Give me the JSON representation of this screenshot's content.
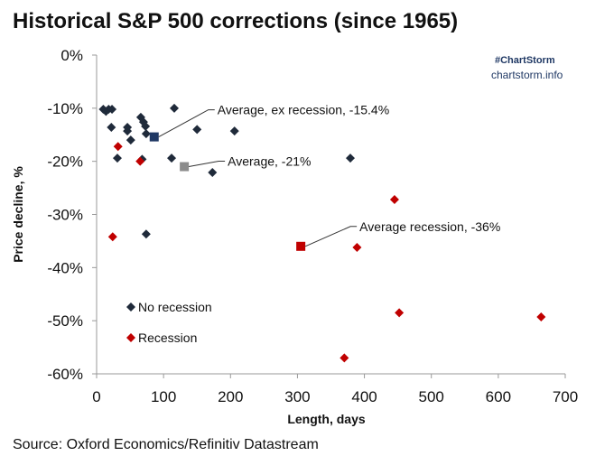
{
  "chart_data": {
    "type": "scatter",
    "title": "Historical S&P 500 corrections (since 1965)",
    "xlabel": "Length, days",
    "ylabel": "Price decline, %",
    "xlim": [
      0,
      700
    ],
    "ylim": [
      -60,
      0
    ],
    "xticks": [
      0,
      100,
      200,
      300,
      400,
      500,
      600,
      700
    ],
    "yticks": [
      0,
      -10,
      -20,
      -30,
      -40,
      -50,
      -60
    ],
    "ytick_labels": [
      "0%",
      "-10%",
      "-20%",
      "-30%",
      "-40%",
      "-50%",
      "-60%"
    ],
    "grid": false,
    "legend": {
      "position": "bottom-left",
      "entries": [
        "No recession",
        "Recession"
      ]
    },
    "series": [
      {
        "name": "No recession",
        "color": "#1f2a3a",
        "points": [
          [
            10,
            -10.2
          ],
          [
            14,
            -10.6
          ],
          [
            18,
            -10.2
          ],
          [
            23,
            -10.2
          ],
          [
            116,
            -10.0
          ],
          [
            22,
            -13.6
          ],
          [
            46,
            -13.6
          ],
          [
            46,
            -14.3
          ],
          [
            66,
            -11.7
          ],
          [
            70,
            -12.6
          ],
          [
            73,
            -13.4
          ],
          [
            74,
            -14.8
          ],
          [
            51,
            -16
          ],
          [
            31,
            -19.4
          ],
          [
            68,
            -19.6
          ],
          [
            112,
            -19.4
          ],
          [
            150,
            -14
          ],
          [
            206,
            -14.3
          ],
          [
            173,
            -22.1
          ],
          [
            74,
            -33.7
          ],
          [
            379,
            -19.4
          ]
        ]
      },
      {
        "name": "Recession",
        "color": "#c00000",
        "points": [
          [
            32,
            -17.2
          ],
          [
            65,
            -20
          ],
          [
            24,
            -34.2
          ],
          [
            389,
            -36.2
          ],
          [
            445,
            -27.2
          ],
          [
            452,
            -48.5
          ],
          [
            370,
            -57
          ],
          [
            664,
            -49.3
          ]
        ]
      }
    ],
    "averages": [
      {
        "label": "Average, ex recession, -15.4%",
        "x": 86,
        "y": -15.4,
        "color": "#1f3864"
      },
      {
        "label": "Average, -21%",
        "x": 131,
        "y": -21,
        "color": "#8c8c8c"
      },
      {
        "label": "Average recession, -36%",
        "x": 305,
        "y": -36,
        "color": "#c00000"
      }
    ],
    "brand": {
      "tag": "#ChartStorm",
      "site": "chartstorm.info"
    },
    "source": "Source: Oxford Economics/Refinitiv Datastream"
  }
}
